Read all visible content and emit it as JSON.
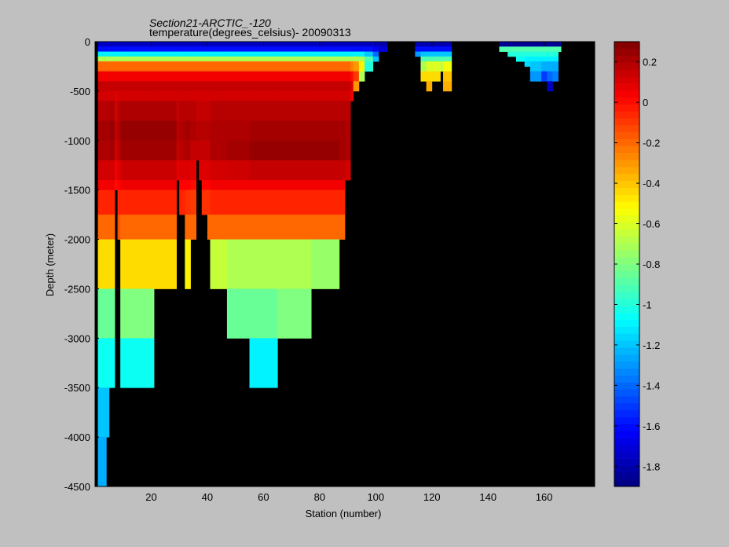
{
  "chart_data": {
    "type": "heatmap",
    "title": "Section21-ARCTIC_-120",
    "subtitle": "temperature(degrees_celsius)- 20090313",
    "xlabel": "Station (number)",
    "ylabel": "Depth (meter)",
    "xlim": [
      0,
      178
    ],
    "ylim": [
      -4500,
      0
    ],
    "xticks": [
      20,
      40,
      60,
      80,
      100,
      120,
      140,
      160
    ],
    "yticks": [
      0,
      -500,
      -1000,
      -1500,
      -2000,
      -2500,
      -3000,
      -3500,
      -4000,
      -4500
    ],
    "colorbar": {
      "range": [
        -1.9,
        0.3
      ],
      "ticks": [
        0.2,
        0,
        -0.2,
        -0.4,
        -0.6,
        -0.8,
        -1,
        -1.2,
        -1.4,
        -1.6,
        -1.8
      ]
    },
    "background_color": "#000000",
    "depth_bins": [
      [
        0,
        50
      ],
      [
        50,
        100
      ],
      [
        100,
        150
      ],
      [
        150,
        200
      ],
      [
        200,
        300
      ],
      [
        300,
        400
      ],
      [
        400,
        500
      ],
      [
        500,
        600
      ],
      [
        600,
        800
      ],
      [
        800,
        1000
      ],
      [
        1000,
        1200
      ],
      [
        1200,
        1400
      ],
      [
        1400,
        1500
      ],
      [
        1500,
        1750
      ],
      [
        1750,
        2000
      ],
      [
        2000,
        2500
      ],
      [
        2500,
        3000
      ],
      [
        3000,
        3500
      ],
      [
        3500,
        4000
      ],
      [
        4000,
        4500
      ]
    ],
    "segments": [
      {
        "x": [
          1,
          4
        ],
        "max_depth": 4500,
        "t": [
          -1.75,
          -1.6,
          -1.1,
          -0.7,
          -0.2,
          0.05,
          0.15,
          0.12,
          0.18,
          0.22,
          0.2,
          0.12,
          0.05,
          -0.05,
          -0.2,
          -0.45,
          -0.85,
          -1.05,
          -1.2,
          -1.25
        ]
      },
      {
        "x": [
          4,
          5
        ],
        "max_depth": 4000,
        "t": [
          -1.75,
          -1.6,
          -1.1,
          -0.7,
          -0.2,
          0.05,
          0.15,
          0.12,
          0.18,
          0.22,
          0.2,
          0.12,
          0.05,
          -0.05,
          -0.2,
          -0.45,
          -0.85,
          -1.05,
          -1.2
        ]
      },
      {
        "x": [
          5,
          7
        ],
        "max_depth": 3500,
        "t": [
          -1.75,
          -1.6,
          -1.1,
          -0.7,
          -0.2,
          0.05,
          0.15,
          0.12,
          0.2,
          0.24,
          0.22,
          0.12,
          0.05,
          -0.05,
          -0.2,
          -0.45,
          -0.85,
          -1.05
        ]
      },
      {
        "x": [
          7,
          8
        ],
        "max_depth": 1550,
        "t": [
          -1.75,
          -1.6,
          -1.1,
          -0.7,
          -0.2,
          0.05,
          0.15,
          0.1,
          0.12,
          0.15,
          0.12,
          0.05,
          0.0
        ]
      },
      {
        "x": [
          8,
          9
        ],
        "max_depth": 2000,
        "t": [
          -1.75,
          -1.6,
          -1.1,
          -0.7,
          -0.2,
          0.05,
          0.15,
          0.12,
          0.18,
          0.2,
          0.18,
          0.1,
          0.02,
          -0.05,
          -0.15
        ]
      },
      {
        "x": [
          9,
          10
        ],
        "max_depth": 3500,
        "t": [
          -1.75,
          -1.6,
          -1.1,
          -0.7,
          -0.2,
          0.05,
          0.15,
          0.12,
          0.2,
          0.24,
          0.22,
          0.12,
          0.05,
          -0.05,
          -0.2,
          -0.45,
          -0.8,
          -1.05
        ]
      },
      {
        "x": [
          10,
          21
        ],
        "max_depth": 3500,
        "t": [
          -1.75,
          -1.6,
          -1.1,
          -0.7,
          -0.2,
          0.05,
          0.15,
          0.12,
          0.2,
          0.25,
          0.23,
          0.14,
          0.06,
          -0.05,
          -0.2,
          -0.45,
          -0.8,
          -1.05
        ]
      },
      {
        "x": [
          21,
          29
        ],
        "max_depth": 2500,
        "t": [
          -1.75,
          -1.6,
          -1.1,
          -0.7,
          -0.2,
          0.05,
          0.15,
          0.12,
          0.2,
          0.25,
          0.23,
          0.14,
          0.06,
          -0.05,
          -0.2,
          -0.45
        ]
      },
      {
        "x": [
          29,
          30
        ],
        "max_depth": 1500,
        "t": [
          -1.75,
          -1.6,
          -1.1,
          -0.7,
          -0.2,
          0.05,
          0.15,
          0.12,
          0.15,
          0.18,
          0.15,
          0.08
        ]
      },
      {
        "x": [
          30,
          32
        ],
        "max_depth": 1750,
        "t": [
          -1.75,
          -1.6,
          -1.1,
          -0.7,
          -0.2,
          0.05,
          0.15,
          0.12,
          0.18,
          0.2,
          0.18,
          0.1,
          0.02,
          -0.05
        ]
      },
      {
        "x": [
          32,
          34
        ],
        "max_depth": 2500,
        "t": [
          -1.75,
          -1.6,
          -1.1,
          -0.7,
          -0.2,
          0.05,
          0.15,
          0.12,
          0.18,
          0.22,
          0.2,
          0.1,
          0.02,
          -0.08,
          -0.2,
          -0.5
        ]
      },
      {
        "x": [
          34,
          36
        ],
        "max_depth": 2000,
        "t": [
          -1.75,
          -1.6,
          -1.1,
          -0.7,
          -0.2,
          0.05,
          0.15,
          0.12,
          0.18,
          0.2,
          0.15,
          0.08,
          0.0,
          -0.1,
          -0.2
        ]
      },
      {
        "x": [
          36,
          37
        ],
        "max_depth": 1300,
        "t": [
          -1.75,
          -1.6,
          -1.1,
          -0.7,
          -0.2,
          0.05,
          0.15,
          0.12,
          0.15,
          0.18,
          0.15
        ]
      },
      {
        "x": [
          37,
          38
        ],
        "max_depth": 1400,
        "t": [
          -1.75,
          -1.6,
          -1.1,
          -0.7,
          -0.2,
          0.05,
          0.15,
          0.12,
          0.15,
          0.18,
          0.15,
          0.1
        ]
      },
      {
        "x": [
          38,
          40
        ],
        "max_depth": 1750,
        "t": [
          -1.75,
          -1.6,
          -1.1,
          -0.7,
          -0.2,
          0.05,
          0.15,
          0.12,
          0.15,
          0.18,
          0.15,
          0.1,
          0.02,
          -0.08
        ]
      },
      {
        "x": [
          40,
          41
        ],
        "max_depth": 2000,
        "t": [
          -1.75,
          -1.6,
          -1.1,
          -0.7,
          -0.2,
          0.05,
          0.15,
          0.12,
          0.15,
          0.18,
          0.15,
          0.1,
          0.02,
          -0.08,
          -0.2
        ]
      },
      {
        "x": [
          41,
          47
        ],
        "max_depth": 2500,
        "t": [
          -1.75,
          -1.6,
          -1.1,
          -0.7,
          -0.2,
          0.05,
          0.15,
          0.12,
          0.18,
          0.2,
          0.2,
          0.12,
          0.05,
          -0.05,
          -0.2,
          -0.65
        ]
      },
      {
        "x": [
          47,
          55
        ],
        "max_depth": 3000,
        "t": [
          -1.75,
          -1.6,
          -1.1,
          -0.7,
          -0.2,
          0.05,
          0.15,
          0.12,
          0.18,
          0.2,
          0.22,
          0.13,
          0.05,
          -0.05,
          -0.2,
          -0.7,
          -0.85
        ]
      },
      {
        "x": [
          55,
          65
        ],
        "max_depth": 3500,
        "t": [
          -1.75,
          -1.6,
          -1.1,
          -0.7,
          -0.2,
          0.05,
          0.15,
          0.12,
          0.18,
          0.22,
          0.25,
          0.15,
          0.05,
          -0.05,
          -0.2,
          -0.7,
          -0.85,
          -1.1
        ]
      },
      {
        "x": [
          65,
          77
        ],
        "max_depth": 3000,
        "t": [
          -1.75,
          -1.6,
          -1.1,
          -0.7,
          -0.2,
          0.05,
          0.15,
          0.12,
          0.18,
          0.22,
          0.25,
          0.15,
          0.05,
          -0.05,
          -0.2,
          -0.7,
          -0.8
        ]
      },
      {
        "x": [
          77,
          87
        ],
        "max_depth": 2500,
        "t": [
          -1.75,
          -1.6,
          -1.1,
          -0.7,
          -0.2,
          0.05,
          0.15,
          0.12,
          0.18,
          0.22,
          0.25,
          0.15,
          0.05,
          -0.05,
          -0.2,
          -0.75
        ]
      },
      {
        "x": [
          87,
          89
        ],
        "max_depth": 2000,
        "t": [
          -1.75,
          -1.6,
          -1.1,
          -0.7,
          -0.2,
          0.05,
          0.15,
          0.12,
          0.18,
          0.22,
          0.22,
          0.15,
          0.05,
          -0.05,
          -0.2
        ]
      },
      {
        "x": [
          89,
          91
        ],
        "max_depth": 1500,
        "t": [
          -1.75,
          -1.6,
          -1.1,
          -0.7,
          -0.2,
          0.05,
          0.15,
          0.12,
          0.18,
          0.2,
          0.2,
          0.12
        ]
      },
      {
        "x": [
          91,
          92
        ],
        "max_depth": 600,
        "t": [
          -1.75,
          -1.6,
          -1.1,
          -0.7,
          -0.25,
          0.0,
          0.1,
          0.05
        ]
      },
      {
        "x": [
          92,
          94
        ],
        "max_depth": 500,
        "t": [
          -1.75,
          -1.6,
          -1.1,
          -0.7,
          -0.3,
          -0.1,
          -0.3
        ]
      },
      {
        "x": [
          94,
          96
        ],
        "max_depth": 400,
        "t": [
          -1.75,
          -1.6,
          -1.1,
          -0.7,
          -0.5,
          -0.7
        ]
      },
      {
        "x": [
          96,
          99
        ],
        "max_depth": 300,
        "t": [
          -1.75,
          -1.6,
          -1.2,
          -0.9,
          -1.0
        ]
      },
      {
        "x": [
          99,
          101
        ],
        "max_depth": 200,
        "t": [
          -1.75,
          -1.65,
          -1.4,
          -1.2
        ]
      },
      {
        "x": [
          101,
          104
        ],
        "max_depth": 100,
        "t": [
          -1.8,
          -1.7
        ]
      },
      {
        "x": [
          114,
          116
        ],
        "max_depth": 150,
        "t": [
          -1.8,
          -1.6,
          -1.3
        ]
      },
      {
        "x": [
          116,
          118
        ],
        "max_depth": 400,
        "t": [
          -1.8,
          -1.6,
          -1.2,
          -0.9,
          -0.7,
          -0.45
        ]
      },
      {
        "x": [
          118,
          120
        ],
        "max_depth": 500,
        "t": [
          -1.8,
          -1.6,
          -1.2,
          -0.9,
          -0.6,
          -0.45,
          -0.35
        ]
      },
      {
        "x": [
          120,
          123
        ],
        "max_depth": 400,
        "t": [
          -1.8,
          -1.6,
          -1.2,
          -0.9,
          -0.6,
          -0.45
        ]
      },
      {
        "x": [
          123,
          124
        ],
        "max_depth": 300,
        "t": [
          -1.8,
          -1.6,
          -1.2,
          -0.9,
          -0.65
        ]
      },
      {
        "x": [
          124,
          127
        ],
        "max_depth": 500,
        "t": [
          -1.8,
          -1.6,
          -1.2,
          -0.9,
          -0.55,
          -0.4,
          -0.35
        ]
      },
      {
        "x": [
          144,
          147
        ],
        "max_depth": 100,
        "t": [
          -1.85,
          -0.9
        ]
      },
      {
        "x": [
          147,
          150
        ],
        "max_depth": 150,
        "t": [
          -1.85,
          -0.9,
          -1.0
        ]
      },
      {
        "x": [
          150,
          153
        ],
        "max_depth": 200,
        "t": [
          -1.85,
          -0.9,
          -1.0,
          -1.05
        ]
      },
      {
        "x": [
          153,
          155
        ],
        "max_depth": 250,
        "t": [
          -1.85,
          -0.9,
          -1.0,
          -1.1,
          -1.15
        ]
      },
      {
        "x": [
          155,
          159
        ],
        "max_depth": 400,
        "t": [
          -1.85,
          -0.9,
          -1.0,
          -1.1,
          -1.2,
          -1.3
        ]
      },
      {
        "x": [
          159,
          161
        ],
        "max_depth": 400,
        "t": [
          -1.85,
          -0.9,
          -1.0,
          -1.1,
          -1.25,
          -1.5
        ]
      },
      {
        "x": [
          161,
          163
        ],
        "max_depth": 500,
        "t": [
          -1.85,
          -0.9,
          -1.0,
          -1.1,
          -1.25,
          -1.4,
          -1.75
        ]
      },
      {
        "x": [
          163,
          165
        ],
        "max_depth": 400,
        "t": [
          -1.85,
          -0.9,
          -1.0,
          -1.1,
          -1.25,
          -1.35
        ]
      },
      {
        "x": [
          165,
          166
        ],
        "max_depth": 100,
        "t": [
          -1.85,
          -0.9
        ]
      }
    ]
  }
}
